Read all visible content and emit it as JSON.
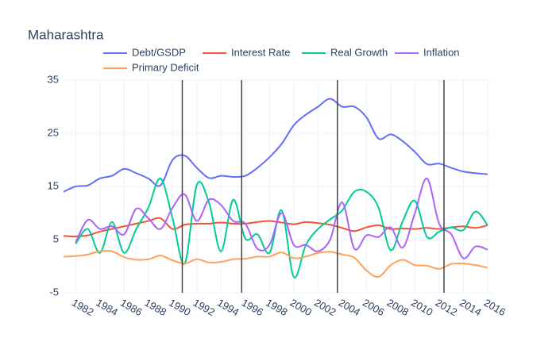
{
  "chart_data": {
    "type": "line",
    "title": "Maharashtra",
    "x": [
      1981,
      1982,
      1983,
      1984,
      1985,
      1986,
      1987,
      1988,
      1989,
      1990,
      1991,
      1992,
      1993,
      1994,
      1995,
      1996,
      1997,
      1998,
      1999,
      2000,
      2001,
      2002,
      2003,
      2004,
      2005,
      2006,
      2007,
      2008,
      2009,
      2010,
      2011,
      2012,
      2013,
      2014,
      2015,
      2016
    ],
    "series": [
      {
        "name": "Debt/GSDP",
        "color": "#636efa",
        "values": [
          14,
          15,
          15.2,
          16.5,
          17,
          18.3,
          17.5,
          16.5,
          15.2,
          20,
          20.8,
          18.5,
          16.6,
          17,
          16.8,
          17,
          18.5,
          20.5,
          23,
          26.5,
          28.5,
          30,
          31.5,
          30,
          30,
          28,
          24,
          24.8,
          23.5,
          21.5,
          19.2,
          19.3,
          18.5,
          17.8,
          17.5,
          17.3
        ]
      },
      {
        "name": "Interest Rate",
        "color": "#EF553B",
        "values": [
          5.7,
          5.6,
          5.8,
          6.5,
          7,
          7.5,
          8,
          8.5,
          9,
          7,
          7.8,
          8,
          8,
          8.2,
          8,
          8,
          8.3,
          8.5,
          8.2,
          7.9,
          8.3,
          8.1,
          7.8,
          7.2,
          6.6,
          7.3,
          7.7,
          7,
          7.1,
          7,
          7.2,
          7,
          7.3,
          7.5,
          7.2,
          7.7
        ]
      },
      {
        "name": "Real Growth",
        "color": "#00cc96",
        "values": [
          null,
          4.2,
          7,
          2.5,
          8.3,
          2.5,
          7,
          11,
          16.5,
          9,
          0.5,
          15.3,
          12,
          2.8,
          12.5,
          5.2,
          6,
          2.5,
          10.5,
          -2,
          4,
          7,
          8.8,
          10.5,
          14,
          14,
          11,
          3,
          8.5,
          12.3,
          5.5,
          6.5,
          7.3,
          6.8,
          10.3,
          7.7
        ]
      },
      {
        "name": "Inflation",
        "color": "#ab63fa",
        "values": [
          null,
          4.5,
          8.7,
          7,
          7.5,
          6,
          10.8,
          9,
          7,
          11,
          13.5,
          8.5,
          12.5,
          11.5,
          8.5,
          8,
          3.3,
          4,
          10,
          4,
          4,
          2.8,
          5,
          12,
          3.3,
          5.8,
          5.5,
          7.3,
          3.5,
          10,
          16.5,
          8,
          6,
          1.5,
          3.7,
          3.1
        ]
      },
      {
        "name": "Primary Deficit",
        "color": "#FFA15A",
        "values": [
          1.8,
          1.9,
          2.2,
          2.8,
          2.8,
          1.7,
          1.2,
          1.3,
          2,
          1.1,
          0.5,
          1.3,
          0.7,
          0.8,
          1.3,
          1.4,
          1.8,
          1.8,
          2.6,
          1.5,
          1.8,
          2.5,
          2.7,
          2.2,
          1.6,
          -0.8,
          -2,
          0.2,
          1.2,
          0.2,
          0.1,
          -0.5,
          0.4,
          0.5,
          0.2,
          -0.3
        ]
      }
    ],
    "xlim": [
      1981,
      2016.4
    ],
    "ylim": [
      -5,
      35
    ],
    "xticks": [
      1982,
      1984,
      1986,
      1988,
      1990,
      1992,
      1994,
      1996,
      1998,
      2000,
      2002,
      2004,
      2006,
      2008,
      2010,
      2012,
      2014,
      2016
    ],
    "yticks": [
      -5,
      5,
      15,
      25,
      35
    ],
    "vlines": [
      1990.8,
      1995.7,
      2003.6,
      2012.4
    ],
    "grid": true
  }
}
